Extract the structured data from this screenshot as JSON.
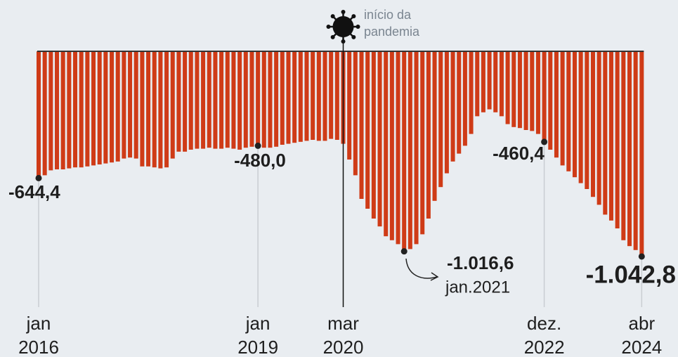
{
  "chart_data": {
    "type": "bar",
    "color": "#cf3b17",
    "categories": [
      "jan 2016",
      null,
      null,
      null,
      null,
      null,
      null,
      null,
      null,
      null,
      null,
      null,
      null,
      null,
      null,
      null,
      null,
      null,
      null,
      null,
      null,
      null,
      null,
      null,
      null,
      null,
      null,
      null,
      null,
      null,
      null,
      null,
      null,
      null,
      null,
      null,
      "jan 2019",
      null,
      null,
      null,
      null,
      null,
      null,
      null,
      null,
      null,
      null,
      null,
      null,
      null,
      "mar 2020",
      null,
      null,
      null,
      null,
      null,
      null,
      null,
      null,
      null,
      null,
      null,
      null,
      null,
      null,
      null,
      null,
      null,
      null,
      null,
      null,
      null,
      null,
      null,
      null,
      null,
      null,
      null,
      null,
      null,
      null,
      null,
      null,
      "dez. 2022",
      null,
      null,
      null,
      null,
      null,
      null,
      null,
      null,
      null,
      null,
      null,
      null,
      null,
      null,
      null,
      "abr 2024"
    ],
    "values": [
      -644.4,
      -630,
      -605,
      -600,
      -600,
      -595,
      -590,
      -590,
      -585,
      -580,
      -575,
      -570,
      -565,
      -560,
      -545,
      -540,
      -545,
      -585,
      -585,
      -590,
      -595,
      -590,
      -545,
      -510,
      -510,
      -500,
      -495,
      -495,
      -490,
      -495,
      -495,
      -490,
      -495,
      -500,
      -490,
      -485,
      -480,
      -490,
      -490,
      -485,
      -475,
      -470,
      -465,
      -460,
      -455,
      -450,
      -455,
      -455,
      -445,
      -450,
      -470,
      -550,
      -630,
      -750,
      -800,
      -850,
      -890,
      -940,
      -960,
      -980,
      -1016.6,
      -1005,
      -980,
      -930,
      -850,
      -760,
      -690,
      -620,
      -560,
      -520,
      -480,
      -420,
      -330,
      -310,
      -295,
      -310,
      -330,
      -370,
      -385,
      -390,
      -400,
      -405,
      -420,
      -460.4,
      -500,
      -540,
      -580,
      -610,
      -640,
      -670,
      -700,
      -740,
      -780,
      -830,
      -860,
      -900,
      -960,
      -990,
      -1010,
      -1042.8
    ],
    "value_labels": [
      "-644,4",
      null,
      null,
      null,
      null,
      null,
      null,
      null,
      null,
      null,
      null,
      null,
      null,
      null,
      null,
      null,
      null,
      null,
      null,
      null,
      null,
      null,
      null,
      null,
      null,
      null,
      null,
      null,
      null,
      null,
      null,
      null,
      null,
      null,
      null,
      null,
      "-480,0",
      null,
      null,
      null,
      null,
      null,
      null,
      null,
      null,
      null,
      null,
      null,
      null,
      null,
      null,
      null,
      null,
      null,
      null,
      null,
      null,
      null,
      null,
      null,
      "-1.016,6",
      null,
      null,
      null,
      null,
      null,
      null,
      null,
      null,
      null,
      null,
      null,
      null,
      null,
      null,
      null,
      null,
      null,
      null,
      null,
      null,
      null,
      null,
      "-460,4",
      null,
      null,
      null,
      null,
      null,
      null,
      null,
      null,
      null,
      null,
      null,
      null,
      null,
      null,
      null,
      "-1.042,8"
    ],
    "annotation_note": "jan.2021",
    "pandemic_label": [
      "início da",
      "pandemia"
    ],
    "ylim": [
      -1300,
      0
    ]
  }
}
